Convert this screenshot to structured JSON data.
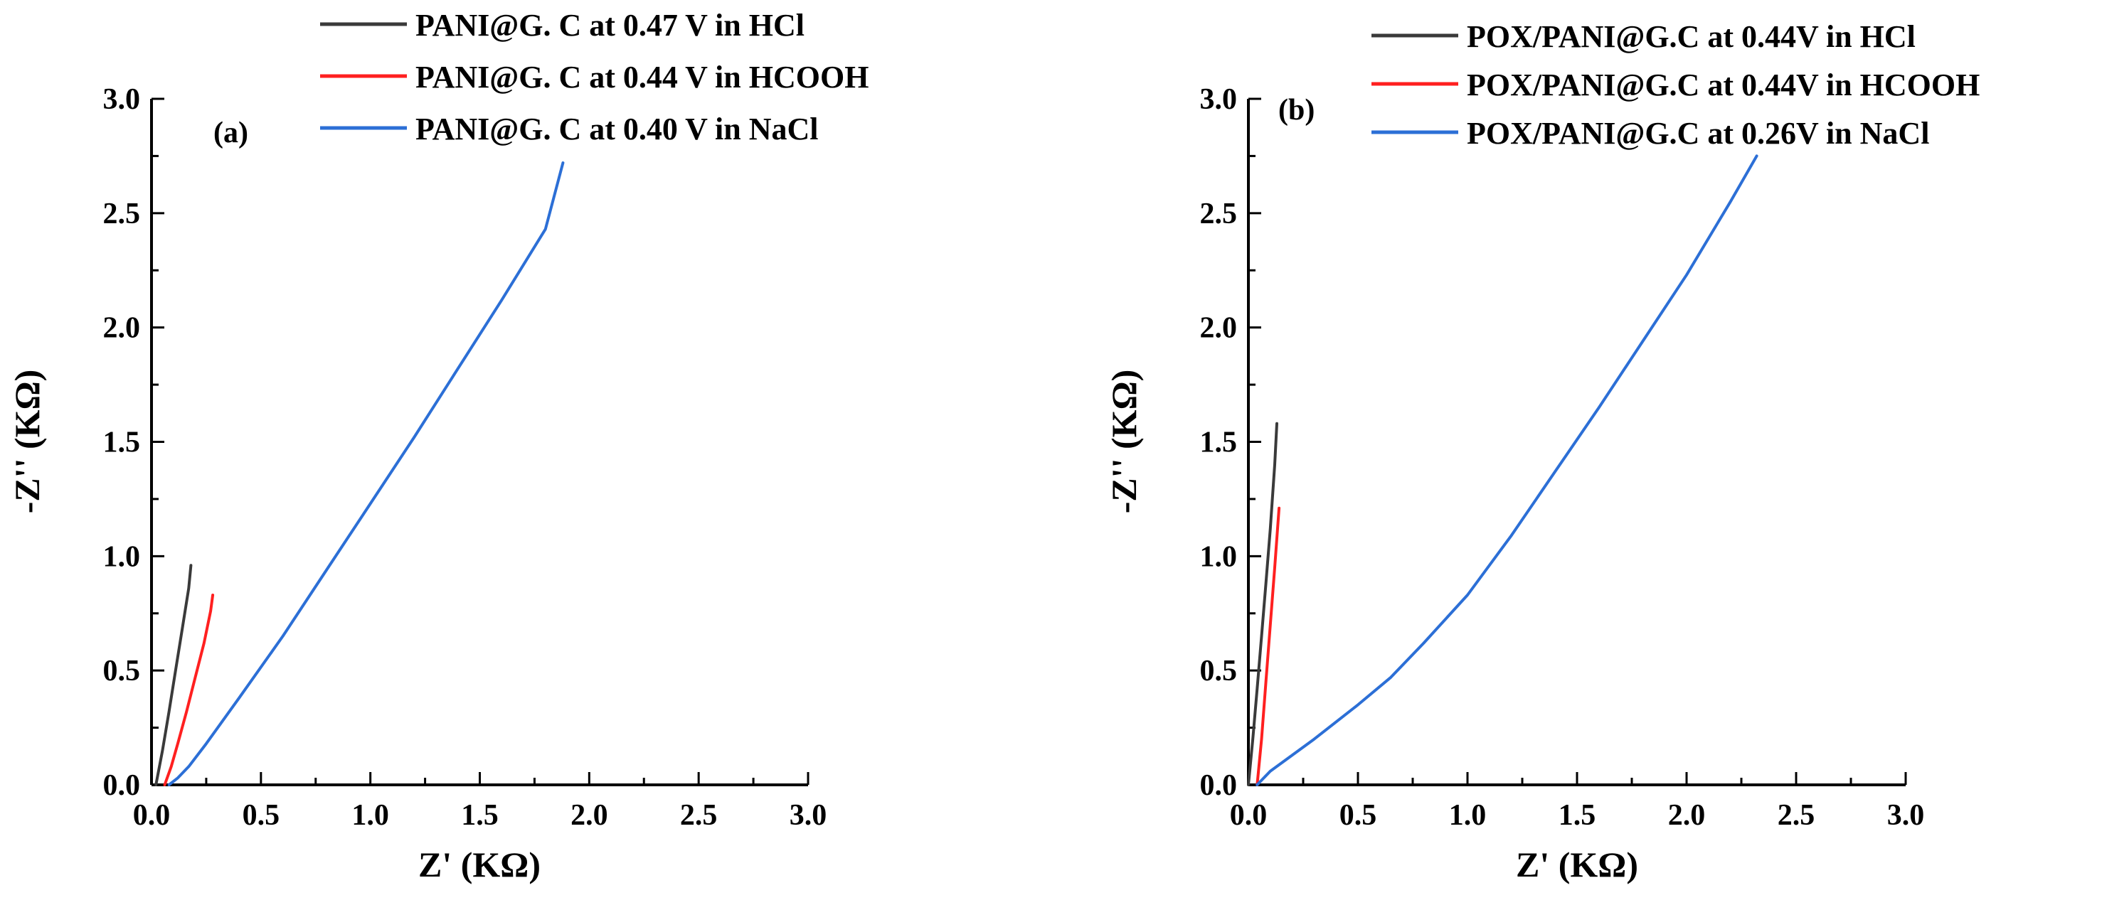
{
  "chart_data": [
    {
      "type": "line",
      "panel_label": "(a)",
      "xlabel": "Z' (KΩ)",
      "ylabel": "-Z'' (KΩ)",
      "xlim": [
        0,
        3
      ],
      "ylim": [
        0,
        3
      ],
      "xticks": [
        "0.0",
        "0.5",
        "1.0",
        "1.5",
        "2.0",
        "2.5",
        "3.0"
      ],
      "yticks": [
        "0.0",
        "0.5",
        "1.0",
        "1.5",
        "2.0",
        "2.5",
        "3.0"
      ],
      "legend_position": "top-center, outside plot",
      "series": [
        {
          "name": "PANI@G. C at 0.47 V in HCl",
          "color": "#3a3a3a",
          "x": [
            0.02,
            0.05,
            0.08,
            0.11,
            0.14,
            0.17,
            0.18
          ],
          "y": [
            0.0,
            0.15,
            0.32,
            0.5,
            0.68,
            0.86,
            0.96
          ]
        },
        {
          "name": "PANI@G. C at 0.44 V in HCOOH",
          "color": "#ff2020",
          "x": [
            0.06,
            0.09,
            0.12,
            0.16,
            0.2,
            0.24,
            0.27,
            0.28
          ],
          "y": [
            0.0,
            0.08,
            0.18,
            0.32,
            0.47,
            0.62,
            0.76,
            0.83
          ]
        },
        {
          "name": "PANI@G. C at 0.40 V in NaCl",
          "color": "#2c6fd6",
          "x": [
            0.08,
            0.12,
            0.17,
            0.25,
            0.4,
            0.6,
            0.8,
            1.0,
            1.2,
            1.4,
            1.6,
            1.8,
            1.88
          ],
          "y": [
            0.0,
            0.03,
            0.08,
            0.18,
            0.38,
            0.65,
            0.94,
            1.23,
            1.52,
            1.82,
            2.12,
            2.43,
            2.72
          ]
        }
      ]
    },
    {
      "type": "line",
      "panel_label": "(b)",
      "xlabel": "Z' (KΩ)",
      "ylabel": "-Z'' (KΩ)",
      "xlim": [
        0,
        3
      ],
      "ylim": [
        0,
        3
      ],
      "xticks": [
        "0.0",
        "0.5",
        "1.0",
        "1.5",
        "2.0",
        "2.5",
        "3.0"
      ],
      "yticks": [
        "0.0",
        "0.5",
        "1.0",
        "1.5",
        "2.0",
        "2.5",
        "3.0"
      ],
      "legend_position": "top-right, outside plot",
      "series": [
        {
          "name": "POX/PANI@G.C at 0.44V in HCl",
          "color": "#3a3a3a",
          "x": [
            0.0,
            0.02,
            0.04,
            0.06,
            0.08,
            0.1,
            0.12,
            0.13
          ],
          "y": [
            0.0,
            0.2,
            0.42,
            0.65,
            0.88,
            1.12,
            1.4,
            1.58
          ]
        },
        {
          "name": "POX/PANI@G.C at 0.44V in HCOOH",
          "color": "#ff2020",
          "x": [
            0.04,
            0.06,
            0.08,
            0.1,
            0.12,
            0.14
          ],
          "y": [
            0.0,
            0.2,
            0.45,
            0.7,
            0.95,
            1.21
          ]
        },
        {
          "name": "POX/PANI@G.C at 0.26V in NaCl",
          "color": "#2c6fd6",
          "x": [
            0.04,
            0.1,
            0.2,
            0.3,
            0.5,
            0.65,
            0.8,
            1.0,
            1.2,
            1.4,
            1.6,
            1.8,
            2.0,
            2.2,
            2.32
          ],
          "y": [
            0.0,
            0.06,
            0.13,
            0.2,
            0.35,
            0.47,
            0.62,
            0.83,
            1.09,
            1.37,
            1.65,
            1.94,
            2.23,
            2.55,
            2.75
          ]
        }
      ]
    }
  ]
}
